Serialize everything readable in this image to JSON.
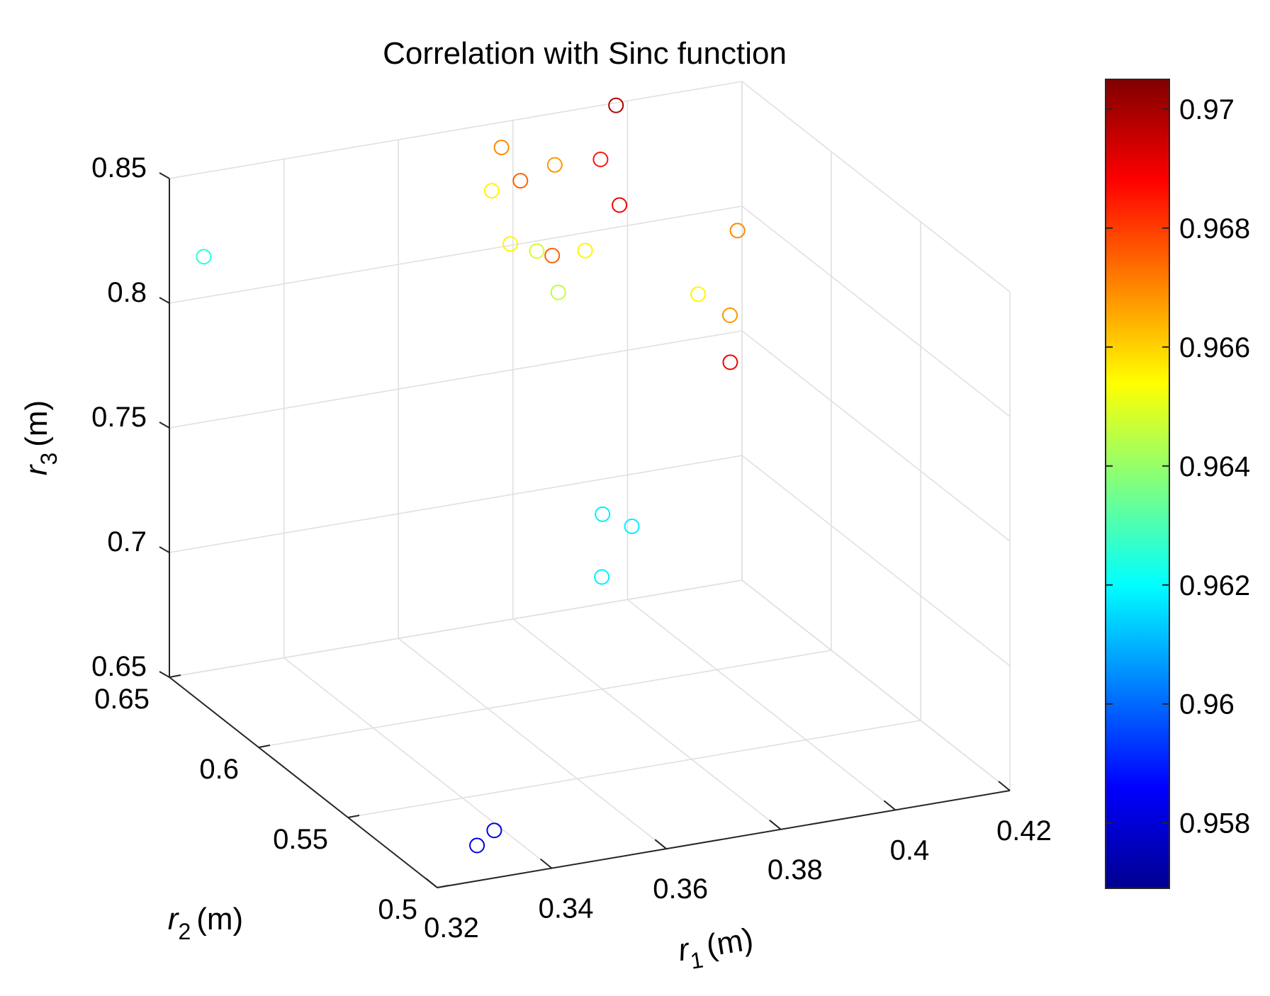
{
  "chart_data": {
    "type": "scatter",
    "title": "Correlation with Sinc function",
    "xlabel": {
      "var": "r",
      "sub": "1",
      "unit": "(m)"
    },
    "ylabel": {
      "var": "r",
      "sub": "2",
      "unit": "(m)"
    },
    "zlabel": {
      "var": "r",
      "sub": "3",
      "unit": "(m)"
    },
    "xlim": [
      0.32,
      0.42
    ],
    "ylim": [
      0.5,
      0.65
    ],
    "zlim": [
      0.65,
      0.85
    ],
    "xticks": [
      "0.32",
      "0.34",
      "0.36",
      "0.38",
      "0.4",
      "0.42"
    ],
    "xtick_values": [
      0.32,
      0.34,
      0.36,
      0.38,
      0.4,
      0.42
    ],
    "yticks": [
      "0.5",
      "0.55",
      "0.6",
      "0.65"
    ],
    "ytick_values": [
      0.5,
      0.55,
      0.6,
      0.65
    ],
    "zticks": [
      "0.65",
      "0.7",
      "0.75",
      "0.8",
      "0.85"
    ],
    "ztick_values": [
      0.65,
      0.7,
      0.75,
      0.8,
      0.85
    ],
    "colorbar": {
      "colormap": "jet",
      "clim": [
        0.9569,
        0.9705
      ],
      "ticks": [
        "0.958",
        "0.96",
        "0.962",
        "0.964",
        "0.966",
        "0.968",
        "0.97"
      ],
      "tick_values": [
        0.958,
        0.96,
        0.962,
        0.964,
        0.966,
        0.968,
        0.97
      ]
    },
    "points": [
      {
        "x": 0.326,
        "y": 0.65,
        "z": 0.8163,
        "c": 0.9625
      },
      {
        "x": 0.331,
        "y": 0.513,
        "z": 0.6553,
        "c": 0.9582
      },
      {
        "x": 0.334,
        "y": 0.513,
        "z": 0.6602,
        "c": 0.9582
      },
      {
        "x": 0.376,
        "y": 0.587,
        "z": 0.729,
        "c": 0.9618
      },
      {
        "x": 0.378,
        "y": 0.577,
        "z": 0.729,
        "c": 0.9618
      },
      {
        "x": 0.374,
        "y": 0.581,
        "z": 0.708,
        "c": 0.9618
      },
      {
        "x": 0.398,
        "y": 0.65,
        "z": 0.849,
        "c": 0.9698
      },
      {
        "x": 0.39,
        "y": 0.633,
        "z": 0.84,
        "c": 0.9685
      },
      {
        "x": 0.388,
        "y": 0.616,
        "z": 0.832,
        "c": 0.969
      },
      {
        "x": 0.398,
        "y": 0.582,
        "z": 0.837,
        "c": 0.967
      },
      {
        "x": 0.378,
        "y": 0.65,
        "z": 0.8399,
        "c": 0.967
      },
      {
        "x": 0.376,
        "y": 0.633,
        "z": 0.8369,
        "c": 0.9675
      },
      {
        "x": 0.382,
        "y": 0.633,
        "z": 0.8409,
        "c": 0.9668
      },
      {
        "x": 0.371,
        "y": 0.633,
        "z": 0.8348,
        "c": 0.9655
      },
      {
        "x": 0.368,
        "y": 0.613,
        "z": 0.8259,
        "c": 0.9655
      },
      {
        "x": 0.372,
        "y": 0.611,
        "z": 0.8226,
        "c": 0.9648
      },
      {
        "x": 0.375,
        "y": 0.612,
        "z": 0.8191,
        "c": 0.9675
      },
      {
        "x": 0.372,
        "y": 0.599,
        "z": 0.8128,
        "c": 0.9645
      },
      {
        "x": 0.382,
        "y": 0.616,
        "z": 0.8161,
        "c": 0.9655
      },
      {
        "x": 0.393,
        "y": 0.588,
        "z": 0.8101,
        "c": 0.9655
      },
      {
        "x": 0.397,
        "y": 0.583,
        "z": 0.8029,
        "c": 0.9668
      },
      {
        "x": 0.393,
        "y": 0.57,
        "z": 0.7929,
        "c": 0.969
      }
    ]
  }
}
